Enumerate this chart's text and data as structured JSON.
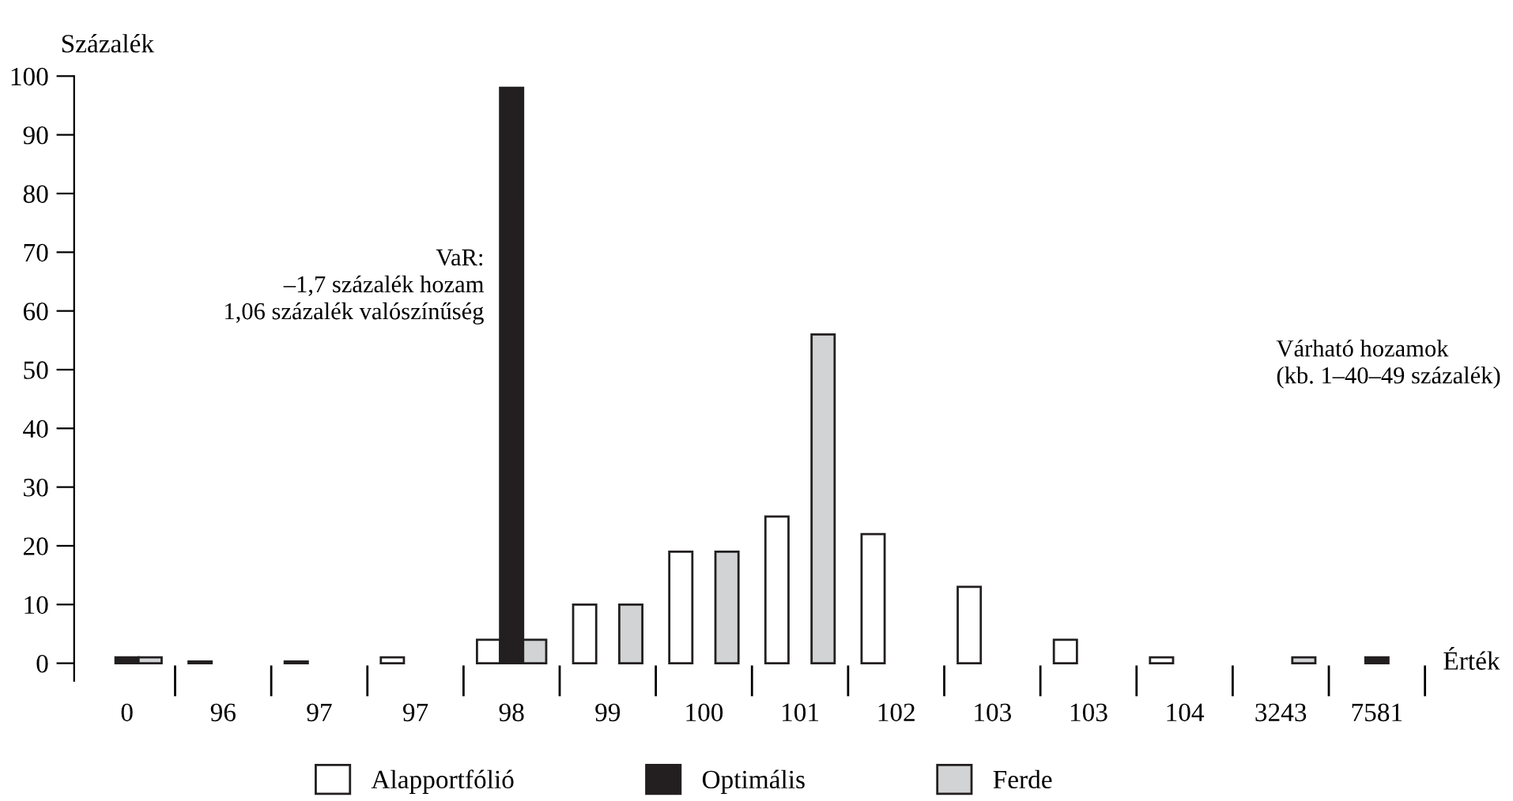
{
  "chart_data": {
    "type": "bar",
    "ylabel": "Százalék",
    "xlabel": "Érték",
    "categories": [
      "0",
      "96",
      "97",
      "97",
      "98",
      "99",
      "100",
      "101",
      "102",
      "103",
      "103",
      "104",
      "3243",
      "7581"
    ],
    "series": [
      {
        "name": "Alapportfólió",
        "color": "#ffffff",
        "values": [
          null,
          0.3,
          0.3,
          1,
          4,
          10,
          19,
          25,
          22,
          13,
          4,
          1,
          null,
          null
        ]
      },
      {
        "name": "Optimális",
        "color": "#231f20",
        "values": [
          1,
          null,
          null,
          null,
          98,
          null,
          null,
          null,
          null,
          null,
          null,
          null,
          null,
          1
        ]
      },
      {
        "name": "Ferde",
        "color": "#d1d3d4",
        "values": [
          1,
          null,
          null,
          null,
          4,
          10,
          19,
          56,
          null,
          null,
          null,
          null,
          1,
          null
        ]
      }
    ],
    "ylim": [
      0,
      100
    ],
    "yticks": [
      0,
      10,
      20,
      30,
      40,
      50,
      60,
      70,
      80,
      90,
      100
    ],
    "annotations": [
      "VaR:\n–1,7 százalék hozam\n1,06 százalék valószínűség",
      "Várható hozamok\n(kb. 1–40–49 százalék)"
    ],
    "legend": "bottom",
    "grid": false
  }
}
